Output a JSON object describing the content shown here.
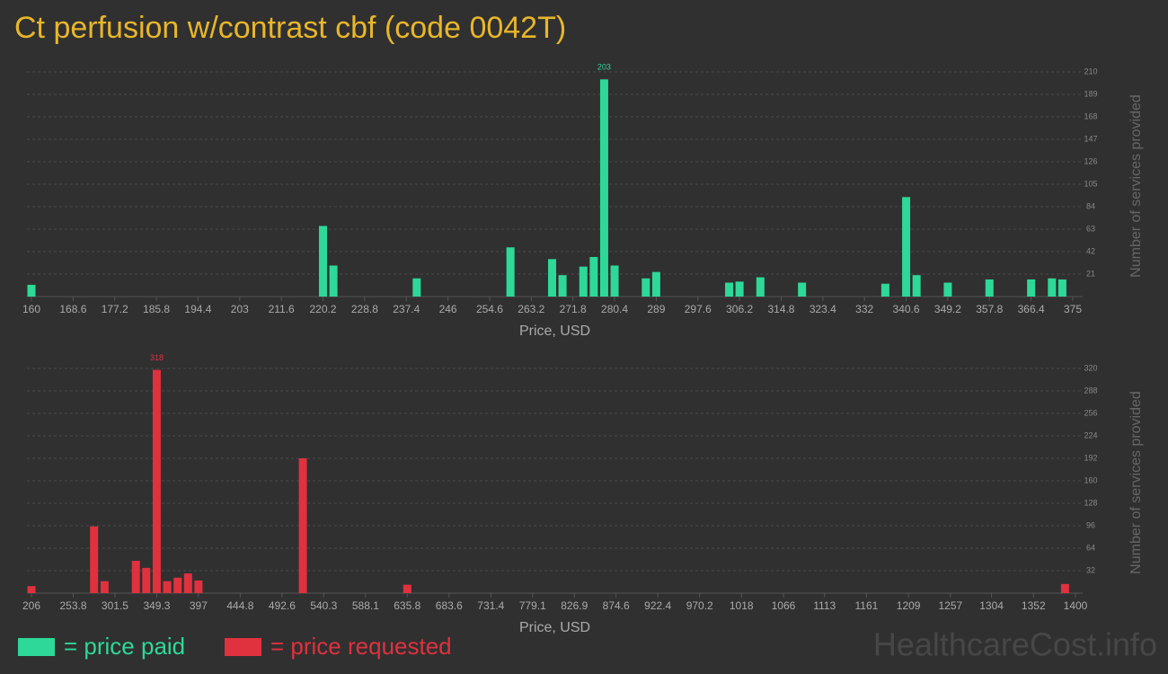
{
  "chart_data": [
    {
      "type": "bar",
      "title": "Ct perfusion w/contrast cbf (code 0042T)",
      "x_label": "Price, USD",
      "y_label": "Number of services provided",
      "x": [
        160,
        220.2,
        222.35,
        239.55,
        258.9,
        267.5,
        269.65,
        273.95,
        276.1,
        278.25,
        280.4,
        286.85,
        289,
        304.05,
        306.2,
        310.5,
        319.1,
        336.3,
        340.6,
        342.75,
        349.2,
        357.8,
        366.4,
        370.7,
        372.85
      ],
      "series": [
        {
          "name": "= price paid",
          "color": "#2ed898",
          "values": [
            11,
            66,
            29,
            17,
            46,
            35,
            20,
            28,
            37,
            203,
            29,
            17,
            23,
            13,
            14,
            18,
            13,
            12,
            93,
            20,
            13,
            16,
            16,
            17,
            16
          ]
        }
      ],
      "xlim": [
        160,
        375
      ],
      "xticks": [
        160,
        168.6,
        177.2,
        185.8,
        194.4,
        203,
        211.6,
        220.2,
        228.8,
        237.4,
        246,
        254.6,
        263.2,
        271.8,
        280.4,
        289,
        297.6,
        306.2,
        314.8,
        323.4,
        332,
        340.6,
        349.2,
        357.8,
        366.4,
        375
      ],
      "ylim": [
        0,
        210
      ],
      "yticks": [
        21,
        42,
        63,
        84,
        105,
        126,
        147,
        168,
        189,
        210
      ],
      "grid": true
    },
    {
      "type": "bar",
      "x_label": "Price, USD",
      "y_label": "Number of services provided",
      "x": [
        206,
        277.6,
        289.6,
        325.4,
        337.3,
        349.3,
        361.2,
        373.2,
        385.1,
        397,
        516.4,
        635.8,
        1388.1
      ],
      "series": [
        {
          "name": "= price requested",
          "color": "#e0313f",
          "values": [
            10,
            95,
            17,
            46,
            36,
            318,
            17,
            22,
            28,
            18,
            192,
            12,
            13
          ]
        }
      ],
      "xlim": [
        206,
        1400
      ],
      "xticks": [
        206,
        253.8,
        301.5,
        349.3,
        397,
        444.8,
        492.6,
        540.3,
        588.1,
        635.8,
        683.6,
        731.4,
        779.1,
        826.9,
        874.6,
        922.4,
        970.2,
        1018,
        1066,
        1113,
        1161,
        1209,
        1257,
        1304,
        1352,
        1400
      ],
      "ylim": [
        0,
        320
      ],
      "yticks": [
        32,
        64,
        96,
        128,
        160,
        192,
        224,
        256,
        288,
        320
      ],
      "grid": true
    }
  ],
  "watermark": "HealthcareCost.info"
}
